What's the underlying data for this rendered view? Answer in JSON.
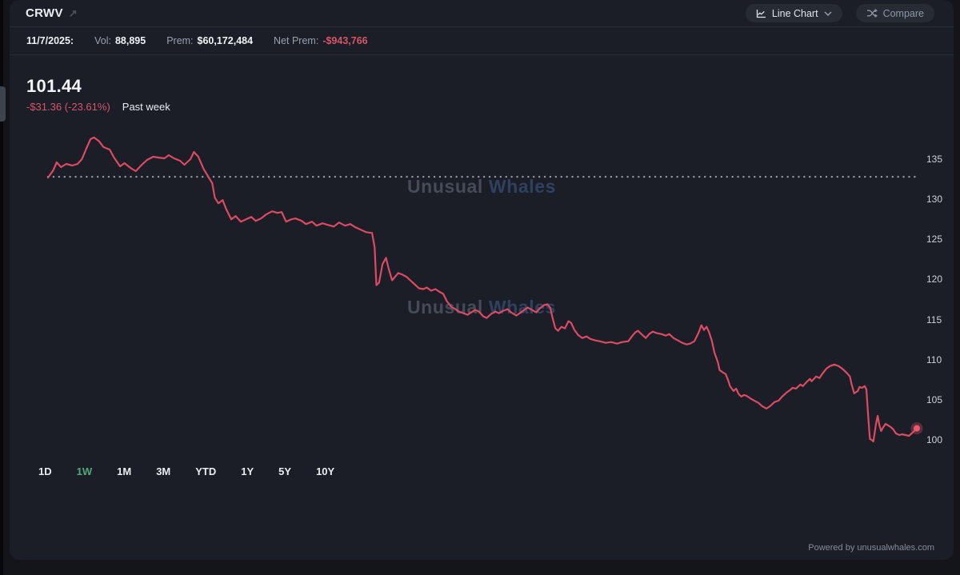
{
  "header": {
    "ticker": "CRWV",
    "external_link_glyph": "↗",
    "chart_type_button": "Line Chart",
    "compare_button": "Compare"
  },
  "stats": {
    "date": "11/7/2025:",
    "vol_label": "Vol:",
    "vol_value": "88,895",
    "prem_label": "Prem:",
    "prem_value": "$60,172,484",
    "net_prem_label": "Net Prem:",
    "net_prem_value": "-$943,766"
  },
  "price_block": {
    "price": "101.44",
    "change": "-$31.36 (-23.61%)",
    "range_label": "Past week"
  },
  "watermark": {
    "word1": "Unusual",
    "word2": "Whales"
  },
  "timeframes": {
    "items": [
      "1D",
      "1W",
      "1M",
      "3M",
      "YTD",
      "1Y",
      "5Y",
      "10Y"
    ],
    "active": "1W",
    "active_color": "#4fa97c"
  },
  "footer": {
    "powered_by": "Powered by unusualwhales.com"
  },
  "colors": {
    "page_bg": "#13151b",
    "panel_bg": "#1b1e26",
    "accent_red": "#dc4a63",
    "negative_text": "#d7556b",
    "active_green": "#4fa97c",
    "dotted_line": "#a7adb8",
    "tick_text": "#ccd1dc"
  },
  "chart_data": {
    "type": "line",
    "title": "CRWV price, past week",
    "symbol": "CRWV",
    "period": "1W",
    "last_price": 101.44,
    "change_abs": -31.36,
    "change_pct": -23.61,
    "previous_close": 132.8,
    "ylim": [
      99,
      139
    ],
    "yticks": [
      135,
      130,
      125,
      120,
      115,
      110,
      105,
      100
    ],
    "grid": "off",
    "legend": "none",
    "line_color": "#dc4a63",
    "end_dot_color": "#ef586f",
    "points": [
      [
        0.0,
        132.7
      ],
      [
        0.006,
        133.6
      ],
      [
        0.01,
        134.6
      ],
      [
        0.015,
        134.0
      ],
      [
        0.021,
        134.4
      ],
      [
        0.028,
        134.2
      ],
      [
        0.034,
        134.4
      ],
      [
        0.039,
        135.0
      ],
      [
        0.044,
        136.3
      ],
      [
        0.049,
        137.5
      ],
      [
        0.053,
        137.7
      ],
      [
        0.059,
        137.2
      ],
      [
        0.064,
        136.5
      ],
      [
        0.071,
        136.2
      ],
      [
        0.076,
        135.2
      ],
      [
        0.083,
        134.1
      ],
      [
        0.088,
        134.5
      ],
      [
        0.095,
        133.9
      ],
      [
        0.101,
        133.5
      ],
      [
        0.108,
        134.3
      ],
      [
        0.114,
        134.9
      ],
      [
        0.121,
        135.3
      ],
      [
        0.127,
        135.2
      ],
      [
        0.134,
        135.1
      ],
      [
        0.139,
        135.5
      ],
      [
        0.145,
        135.1
      ],
      [
        0.152,
        134.8
      ],
      [
        0.157,
        134.3
      ],
      [
        0.164,
        135.0
      ],
      [
        0.168,
        135.9
      ],
      [
        0.173,
        135.3
      ],
      [
        0.179,
        133.8
      ],
      [
        0.184,
        132.9
      ],
      [
        0.189,
        132.0
      ],
      [
        0.192,
        130.2
      ],
      [
        0.196,
        129.5
      ],
      [
        0.201,
        129.9
      ],
      [
        0.205,
        128.8
      ],
      [
        0.211,
        127.5
      ],
      [
        0.216,
        127.9
      ],
      [
        0.222,
        127.2
      ],
      [
        0.228,
        127.5
      ],
      [
        0.234,
        127.8
      ],
      [
        0.239,
        127.3
      ],
      [
        0.245,
        127.6
      ],
      [
        0.251,
        128.1
      ],
      [
        0.258,
        128.5
      ],
      [
        0.264,
        128.3
      ],
      [
        0.269,
        128.4
      ],
      [
        0.274,
        127.2
      ],
      [
        0.28,
        127.5
      ],
      [
        0.285,
        127.6
      ],
      [
        0.292,
        127.3
      ],
      [
        0.297,
        126.9
      ],
      [
        0.304,
        127.2
      ],
      [
        0.309,
        126.7
      ],
      [
        0.316,
        127.0
      ],
      [
        0.322,
        126.8
      ],
      [
        0.329,
        126.6
      ],
      [
        0.335,
        127.1
      ],
      [
        0.342,
        126.7
      ],
      [
        0.348,
        126.9
      ],
      [
        0.354,
        126.5
      ],
      [
        0.36,
        126.2
      ],
      [
        0.366,
        125.9
      ],
      [
        0.373,
        125.8
      ],
      [
        0.376,
        124.0
      ],
      [
        0.378,
        119.3
      ],
      [
        0.381,
        119.6
      ],
      [
        0.385,
        121.9
      ],
      [
        0.389,
        122.7
      ],
      [
        0.392,
        121.4
      ],
      [
        0.396,
        119.9
      ],
      [
        0.4,
        120.4
      ],
      [
        0.403,
        120.8
      ],
      [
        0.408,
        120.6
      ],
      [
        0.413,
        120.3
      ],
      [
        0.418,
        119.8
      ],
      [
        0.423,
        119.3
      ],
      [
        0.427,
        118.9
      ],
      [
        0.432,
        118.8
      ],
      [
        0.436,
        119.0
      ],
      [
        0.441,
        118.6
      ],
      [
        0.446,
        118.8
      ],
      [
        0.45,
        118.5
      ],
      [
        0.455,
        118.2
      ],
      [
        0.459,
        117.3
      ],
      [
        0.464,
        116.6
      ],
      [
        0.469,
        116.3
      ],
      [
        0.473,
        116.0
      ],
      [
        0.478,
        115.8
      ],
      [
        0.483,
        115.6
      ],
      [
        0.487,
        115.9
      ],
      [
        0.492,
        116.2
      ],
      [
        0.496,
        116.0
      ],
      [
        0.501,
        115.4
      ],
      [
        0.505,
        115.2
      ],
      [
        0.51,
        115.7
      ],
      [
        0.515,
        116.0
      ],
      [
        0.519,
        115.8
      ],
      [
        0.524,
        116.1
      ],
      [
        0.529,
        116.3
      ],
      [
        0.533,
        115.9
      ],
      [
        0.539,
        115.5
      ],
      [
        0.543,
        115.8
      ],
      [
        0.548,
        116.2
      ],
      [
        0.552,
        116.5
      ],
      [
        0.557,
        116.2
      ],
      [
        0.562,
        115.9
      ],
      [
        0.566,
        116.4
      ],
      [
        0.571,
        116.8
      ],
      [
        0.575,
        116.9
      ],
      [
        0.578,
        116.5
      ],
      [
        0.581,
        115.1
      ],
      [
        0.584,
        113.9
      ],
      [
        0.587,
        113.6
      ],
      [
        0.591,
        114.1
      ],
      [
        0.595,
        113.9
      ],
      [
        0.599,
        114.8
      ],
      [
        0.602,
        114.6
      ],
      [
        0.606,
        113.7
      ],
      [
        0.61,
        113.1
      ],
      [
        0.615,
        112.7
      ],
      [
        0.62,
        112.9
      ],
      [
        0.624,
        112.6
      ],
      [
        0.63,
        112.4
      ],
      [
        0.635,
        112.3
      ],
      [
        0.642,
        112.1
      ],
      [
        0.648,
        112.2
      ],
      [
        0.655,
        112.0
      ],
      [
        0.661,
        112.2
      ],
      [
        0.668,
        112.3
      ],
      [
        0.672,
        112.9
      ],
      [
        0.676,
        113.4
      ],
      [
        0.679,
        113.6
      ],
      [
        0.683,
        113.2
      ],
      [
        0.688,
        112.7
      ],
      [
        0.692,
        113.2
      ],
      [
        0.696,
        113.5
      ],
      [
        0.701,
        113.3
      ],
      [
        0.706,
        113.2
      ],
      [
        0.711,
        113.0
      ],
      [
        0.715,
        113.2
      ],
      [
        0.72,
        112.7
      ],
      [
        0.725,
        112.4
      ],
      [
        0.73,
        112.1
      ],
      [
        0.735,
        111.9
      ],
      [
        0.739,
        112.0
      ],
      [
        0.744,
        112.3
      ],
      [
        0.749,
        113.4
      ],
      [
        0.752,
        114.3
      ],
      [
        0.755,
        113.7
      ],
      [
        0.758,
        114.1
      ],
      [
        0.761,
        113.4
      ],
      [
        0.764,
        112.4
      ],
      [
        0.767,
        110.9
      ],
      [
        0.771,
        109.7
      ],
      [
        0.773,
        108.7
      ],
      [
        0.777,
        108.4
      ],
      [
        0.78,
        108.2
      ],
      [
        0.783,
        107.4
      ],
      [
        0.785,
        106.7
      ],
      [
        0.789,
        106.1
      ],
      [
        0.792,
        106.4
      ],
      [
        0.795,
        105.7
      ],
      [
        0.798,
        105.4
      ],
      [
        0.801,
        105.6
      ],
      [
        0.804,
        105.5
      ],
      [
        0.808,
        105.2
      ],
      [
        0.813,
        104.9
      ],
      [
        0.818,
        104.6
      ],
      [
        0.822,
        104.2
      ],
      [
        0.827,
        103.9
      ],
      [
        0.831,
        104.2
      ],
      [
        0.836,
        104.7
      ],
      [
        0.841,
        104.9
      ],
      [
        0.845,
        105.4
      ],
      [
        0.85,
        105.9
      ],
      [
        0.854,
        106.2
      ],
      [
        0.857,
        106.5
      ],
      [
        0.861,
        106.4
      ],
      [
        0.866,
        106.9
      ],
      [
        0.869,
        106.7
      ],
      [
        0.873,
        107.2
      ],
      [
        0.877,
        107.6
      ],
      [
        0.879,
        107.3
      ],
      [
        0.884,
        107.9
      ],
      [
        0.888,
        107.7
      ],
      [
        0.891,
        108.2
      ],
      [
        0.896,
        108.9
      ],
      [
        0.9,
        109.2
      ],
      [
        0.905,
        109.4
      ],
      [
        0.91,
        109.2
      ],
      [
        0.914,
        108.9
      ],
      [
        0.919,
        108.4
      ],
      [
        0.923,
        107.9
      ],
      [
        0.925,
        106.9
      ],
      [
        0.928,
        105.8
      ],
      [
        0.932,
        106.1
      ],
      [
        0.934,
        106.6
      ],
      [
        0.937,
        106.5
      ],
      [
        0.94,
        106.7
      ],
      [
        0.942,
        106.3
      ],
      [
        0.944,
        103.0
      ],
      [
        0.946,
        100.1
      ],
      [
        0.948,
        100.0
      ],
      [
        0.95,
        99.8
      ],
      [
        0.953,
        102.0
      ],
      [
        0.955,
        103.0
      ],
      [
        0.957,
        101.8
      ],
      [
        0.959,
        101.1
      ],
      [
        0.961,
        101.5
      ],
      [
        0.964,
        102.0
      ],
      [
        0.967,
        101.8
      ],
      [
        0.97,
        101.6
      ],
      [
        0.973,
        101.3
      ],
      [
        0.976,
        100.8
      ],
      [
        0.98,
        100.6
      ],
      [
        0.983,
        100.7
      ],
      [
        0.987,
        100.6
      ],
      [
        0.991,
        100.5
      ],
      [
        0.994,
        100.8
      ],
      [
        0.997,
        101.1
      ],
      [
        1.0,
        101.44
      ]
    ]
  }
}
